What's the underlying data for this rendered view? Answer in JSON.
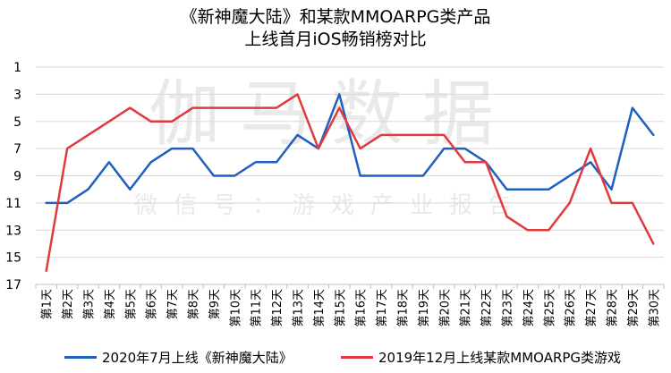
{
  "chart_data": {
    "type": "line",
    "title": [
      "《新神魔大陆》和某款MMOARPG类产品",
      "上线首月iOS畅销榜对比"
    ],
    "categories": [
      "第1天",
      "第2天",
      "第3天",
      "第4天",
      "第5天",
      "第6天",
      "第7天",
      "第8天",
      "第9天",
      "第10天",
      "第11天",
      "第12天",
      "第13天",
      "第14天",
      "第15天",
      "第16天",
      "第17天",
      "第18天",
      "第19天",
      "第20天",
      "第21天",
      "第22天",
      "第23天",
      "第24天",
      "第25天",
      "第26天",
      "第27天",
      "第28天",
      "第29天",
      "第30天"
    ],
    "yticks": [
      1,
      3,
      5,
      7,
      9,
      11,
      13,
      15,
      17
    ],
    "ylim": [
      1,
      17
    ],
    "yreversed": true,
    "series": [
      {
        "name": "2020年7月上线《新神魔大陆》",
        "color": "#1f5fbf",
        "values": [
          11,
          11,
          10,
          8,
          10,
          8,
          7,
          7,
          9,
          9,
          8,
          8,
          6,
          7,
          3,
          9,
          9,
          9,
          9,
          7,
          7,
          8,
          10,
          10,
          10,
          9,
          8,
          10,
          4,
          6
        ]
      },
      {
        "name": "2019年12月上线某款MMOARPG类游戏",
        "color": "#e03a3e",
        "values": [
          16,
          7,
          6,
          5,
          4,
          5,
          5,
          4,
          4,
          4,
          4,
          4,
          3,
          7,
          4,
          7,
          6,
          6,
          6,
          6,
          8,
          8,
          12,
          13,
          13,
          11,
          7,
          11,
          11,
          14
        ]
      }
    ],
    "watermark": {
      "main": "伽马数据",
      "sub": "微信号：游戏产业报告"
    }
  }
}
